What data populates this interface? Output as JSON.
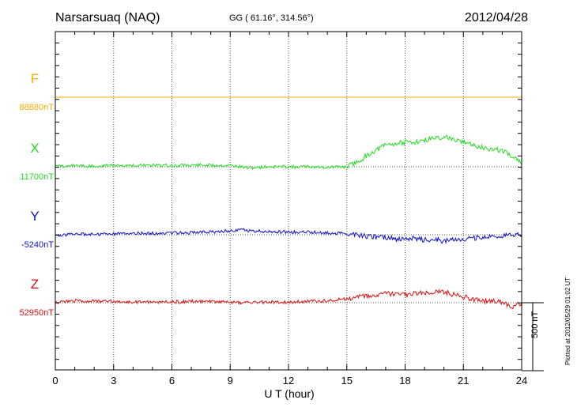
{
  "header": {
    "station": "Narsarsuaq (NAQ)",
    "coords": "GG ( 61.16°, 314.56°)",
    "date": "2012/04/28"
  },
  "footer": {
    "plotted": "Plotted at 2012/05/29 01:02 UT"
  },
  "chart_data": {
    "type": "line",
    "xlabel": "U T (hour)",
    "xlim": [
      0,
      24
    ],
    "xticks": [
      "0",
      "3",
      "6",
      "9",
      "12",
      "15",
      "18",
      "21",
      "24"
    ],
    "scale_bar": {
      "label": "500 nT",
      "value_nT": 500
    },
    "colors": {
      "F": "#ffaa00",
      "X": "#22dd22",
      "Y": "#1010d0",
      "Z": "#dd1010"
    },
    "series": [
      {
        "name": "F",
        "baseline_label": "88880nT",
        "baseline": 88880,
        "color": "#ffaa00",
        "x": [
          0,
          3,
          6,
          9,
          12,
          15,
          18,
          21,
          24
        ],
        "y": [
          88880,
          88880,
          88880,
          88880,
          88880,
          88880,
          88880,
          88880,
          88880
        ]
      },
      {
        "name": "X",
        "baseline_label": "11700nT",
        "baseline": 11700,
        "color": "#22dd22",
        "x": [
          0,
          0.5,
          1,
          2,
          3,
          4,
          5,
          6,
          7,
          8,
          9,
          9.5,
          10,
          10.5,
          11,
          12,
          13,
          14,
          15,
          15.5,
          16,
          16.5,
          17,
          17.5,
          18,
          18.5,
          19,
          19.5,
          20,
          20.5,
          21,
          21.5,
          22,
          22.5,
          23,
          23.5,
          24
        ],
        "y": [
          11700,
          11705,
          11710,
          11705,
          11710,
          11710,
          11712,
          11710,
          11712,
          11710,
          11710,
          11700,
          11690,
          11695,
          11700,
          11700,
          11700,
          11695,
          11700,
          11730,
          11780,
          11820,
          11860,
          11870,
          11880,
          11880,
          11900,
          11910,
          11920,
          11910,
          11880,
          11860,
          11840,
          11830,
          11820,
          11780,
          11720
        ]
      },
      {
        "name": "Y",
        "baseline_label": "-5240nT",
        "baseline": -5240,
        "color": "#1010d0",
        "x": [
          0,
          0.5,
          1,
          2,
          3,
          4,
          5,
          6,
          7,
          8,
          9,
          9.5,
          10,
          10.5,
          11,
          12,
          13,
          14,
          15,
          15.5,
          16,
          16.5,
          17,
          17.5,
          18,
          18.5,
          19,
          19.5,
          20,
          20.5,
          21,
          21.5,
          22,
          22.5,
          23,
          23.5,
          24
        ],
        "y": [
          -5250,
          -5240,
          -5235,
          -5240,
          -5235,
          -5230,
          -5230,
          -5225,
          -5225,
          -5220,
          -5210,
          -5200,
          -5210,
          -5215,
          -5220,
          -5220,
          -5220,
          -5225,
          -5230,
          -5240,
          -5250,
          -5255,
          -5260,
          -5270,
          -5275,
          -5265,
          -5280,
          -5270,
          -5290,
          -5275,
          -5270,
          -5265,
          -5260,
          -5255,
          -5250,
          -5235,
          -5245
        ]
      },
      {
        "name": "Z",
        "baseline_label": "52950nT",
        "baseline": 52950,
        "color": "#dd1010",
        "x": [
          0,
          0.5,
          1,
          2,
          3,
          4,
          5,
          6,
          7,
          8,
          9,
          9.5,
          10,
          10.5,
          11,
          12,
          13,
          14,
          15,
          15.5,
          16,
          16.5,
          17,
          17.5,
          18,
          18.5,
          19,
          19.5,
          20,
          20.5,
          21,
          21.5,
          22,
          22.5,
          23,
          23.5,
          24
        ],
        "y": [
          52950,
          52960,
          52965,
          52960,
          52960,
          52955,
          52955,
          52955,
          52960,
          52960,
          52955,
          52950,
          52950,
          52955,
          52955,
          52955,
          52960,
          52965,
          52980,
          52990,
          52995,
          53000,
          53015,
          53010,
          53010,
          53015,
          53020,
          53035,
          53030,
          53010,
          52995,
          52975,
          52965,
          52960,
          52955,
          52915,
          52950
        ]
      }
    ]
  }
}
